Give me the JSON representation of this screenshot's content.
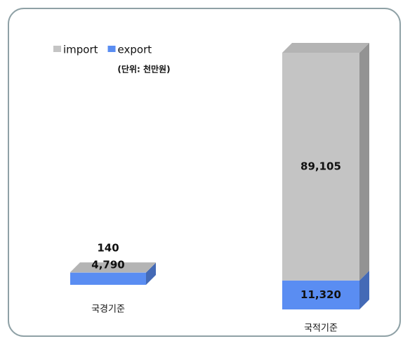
{
  "chart_data": {
    "type": "stacked-bar-3d",
    "subtitle": "(단위: 천만원)",
    "categories": [
      "국경기준",
      "국적기준"
    ],
    "series": [
      {
        "name": "export",
        "color": "#5a8df2",
        "values": [
          4790,
          11320
        ],
        "value_labels": [
          "4,790",
          "11,320"
        ]
      },
      {
        "name": "import",
        "color": "#c4c4c4",
        "values": [
          140,
          89105
        ],
        "value_labels": [
          "140",
          "89,105"
        ]
      }
    ],
    "legend": "top-left"
  }
}
